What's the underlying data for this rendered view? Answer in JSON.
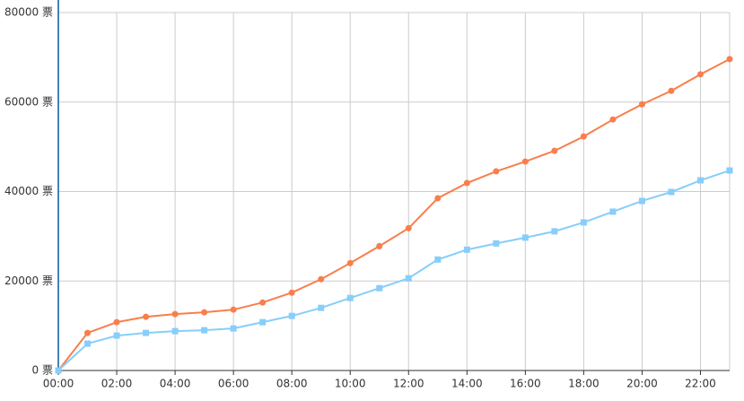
{
  "chart_data": {
    "type": "line",
    "categories": [
      "00:00",
      null,
      "02:00",
      null,
      "04:00",
      null,
      "06:00",
      null,
      "08:00",
      null,
      "10:00",
      null,
      "12:00",
      null,
      "14:00",
      null,
      "16:00",
      null,
      "18:00",
      null,
      "20:00",
      null,
      "22:00",
      null
    ],
    "series": [
      {
        "color": "#f97e4c",
        "marker": "circle",
        "values": [
          0,
          8400,
          10800,
          12000,
          12600,
          13000,
          13600,
          15200,
          17400,
          20400,
          24000,
          27800,
          31800,
          38500,
          41900,
          44500,
          46700,
          49100,
          52300,
          56100,
          59500,
          62500,
          66200,
          69600
        ]
      },
      {
        "color": "#87cefa",
        "marker": "square",
        "values": [
          0,
          6000,
          7800,
          8400,
          8800,
          9000,
          9400,
          10800,
          12200,
          14000,
          16200,
          18400,
          20600,
          24800,
          27000,
          28400,
          29700,
          31100,
          33100,
          35500,
          37900,
          39900,
          42500,
          44700
        ]
      }
    ],
    "ylim": [
      0,
      80000
    ],
    "yticks": [
      {
        "value": 0,
        "label": "0 票"
      },
      {
        "value": 20000,
        "label": "20000 票"
      },
      {
        "value": 40000,
        "label": "40000 票"
      },
      {
        "value": 60000,
        "label": "60000 票"
      },
      {
        "value": 80000,
        "label": "80000 票"
      }
    ],
    "grid": true
  }
}
